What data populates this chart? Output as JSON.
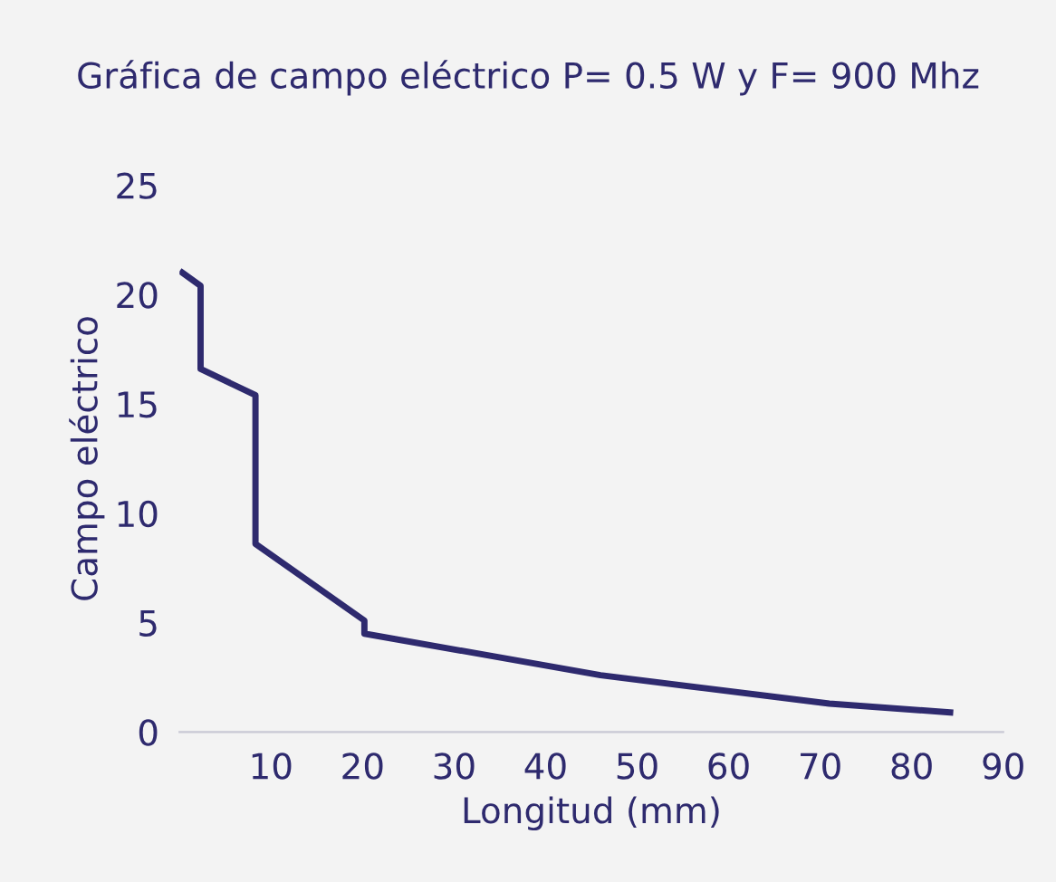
{
  "chart_data": {
    "type": "line",
    "title": "Gráfica de campo eléctrico P= 0.5 W y F= 900 Mhz",
    "xlabel": "Longitud (mm)",
    "ylabel": "Campo eléctrico",
    "x": [
      0.3,
      2.3,
      2.3,
      8.3,
      8.3,
      20.2,
      20.2,
      46,
      71,
      84.2
    ],
    "series": [
      {
        "color": "#2e2a6e",
        "values": [
          21.0,
          20.4,
          16.6,
          15.4,
          8.6,
          5.1,
          4.5,
          2.6,
          1.3,
          0.9
        ]
      }
    ],
    "xlim": [
      0,
      90
    ],
    "ylim": [
      0,
      25
    ],
    "xticks": [
      10,
      20,
      30,
      40,
      50,
      60,
      70,
      80,
      90
    ],
    "yticks": [
      0,
      5,
      10,
      15,
      20,
      25
    ],
    "grid": false,
    "legend": false,
    "marker": "none",
    "line_style": "solid"
  }
}
